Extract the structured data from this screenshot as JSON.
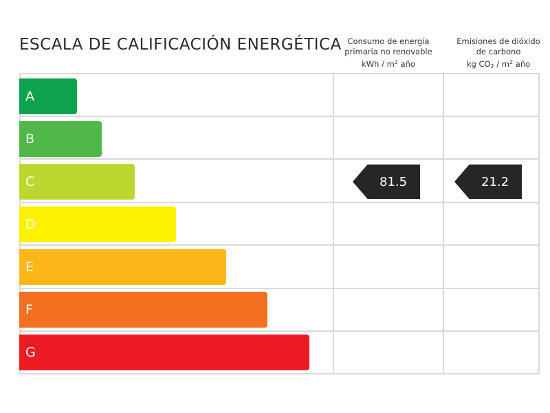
{
  "title": "ESCALA DE CALIFICACIÓN ENERGÉTICA",
  "columns": {
    "energy": {
      "line1": "Consumo de energía",
      "line2": "primaria no renovable",
      "unit_main": "kWh / m",
      "unit_sup": "2",
      "unit_end": " año"
    },
    "emissions": {
      "line1": "Emisiones de dióxido",
      "line2": "de carbono",
      "unit_pre": "kg CO",
      "unit_sub": "2",
      "unit_mid": " / m",
      "unit_sup": "2",
      "unit_end": " año"
    }
  },
  "ratings": [
    {
      "letter": "A",
      "color": "#0fa24e"
    },
    {
      "letter": "B",
      "color": "#50b848"
    },
    {
      "letter": "C",
      "color": "#bed730"
    },
    {
      "letter": "D",
      "color": "#fff200"
    },
    {
      "letter": "E",
      "color": "#fdb71a"
    },
    {
      "letter": "F",
      "color": "#f37021"
    },
    {
      "letter": "G",
      "color": "#ed1c24"
    }
  ],
  "indicators": {
    "energy": {
      "value": "81.5",
      "rating": "C"
    },
    "emissions": {
      "value": "21.2",
      "rating": "C"
    }
  }
}
